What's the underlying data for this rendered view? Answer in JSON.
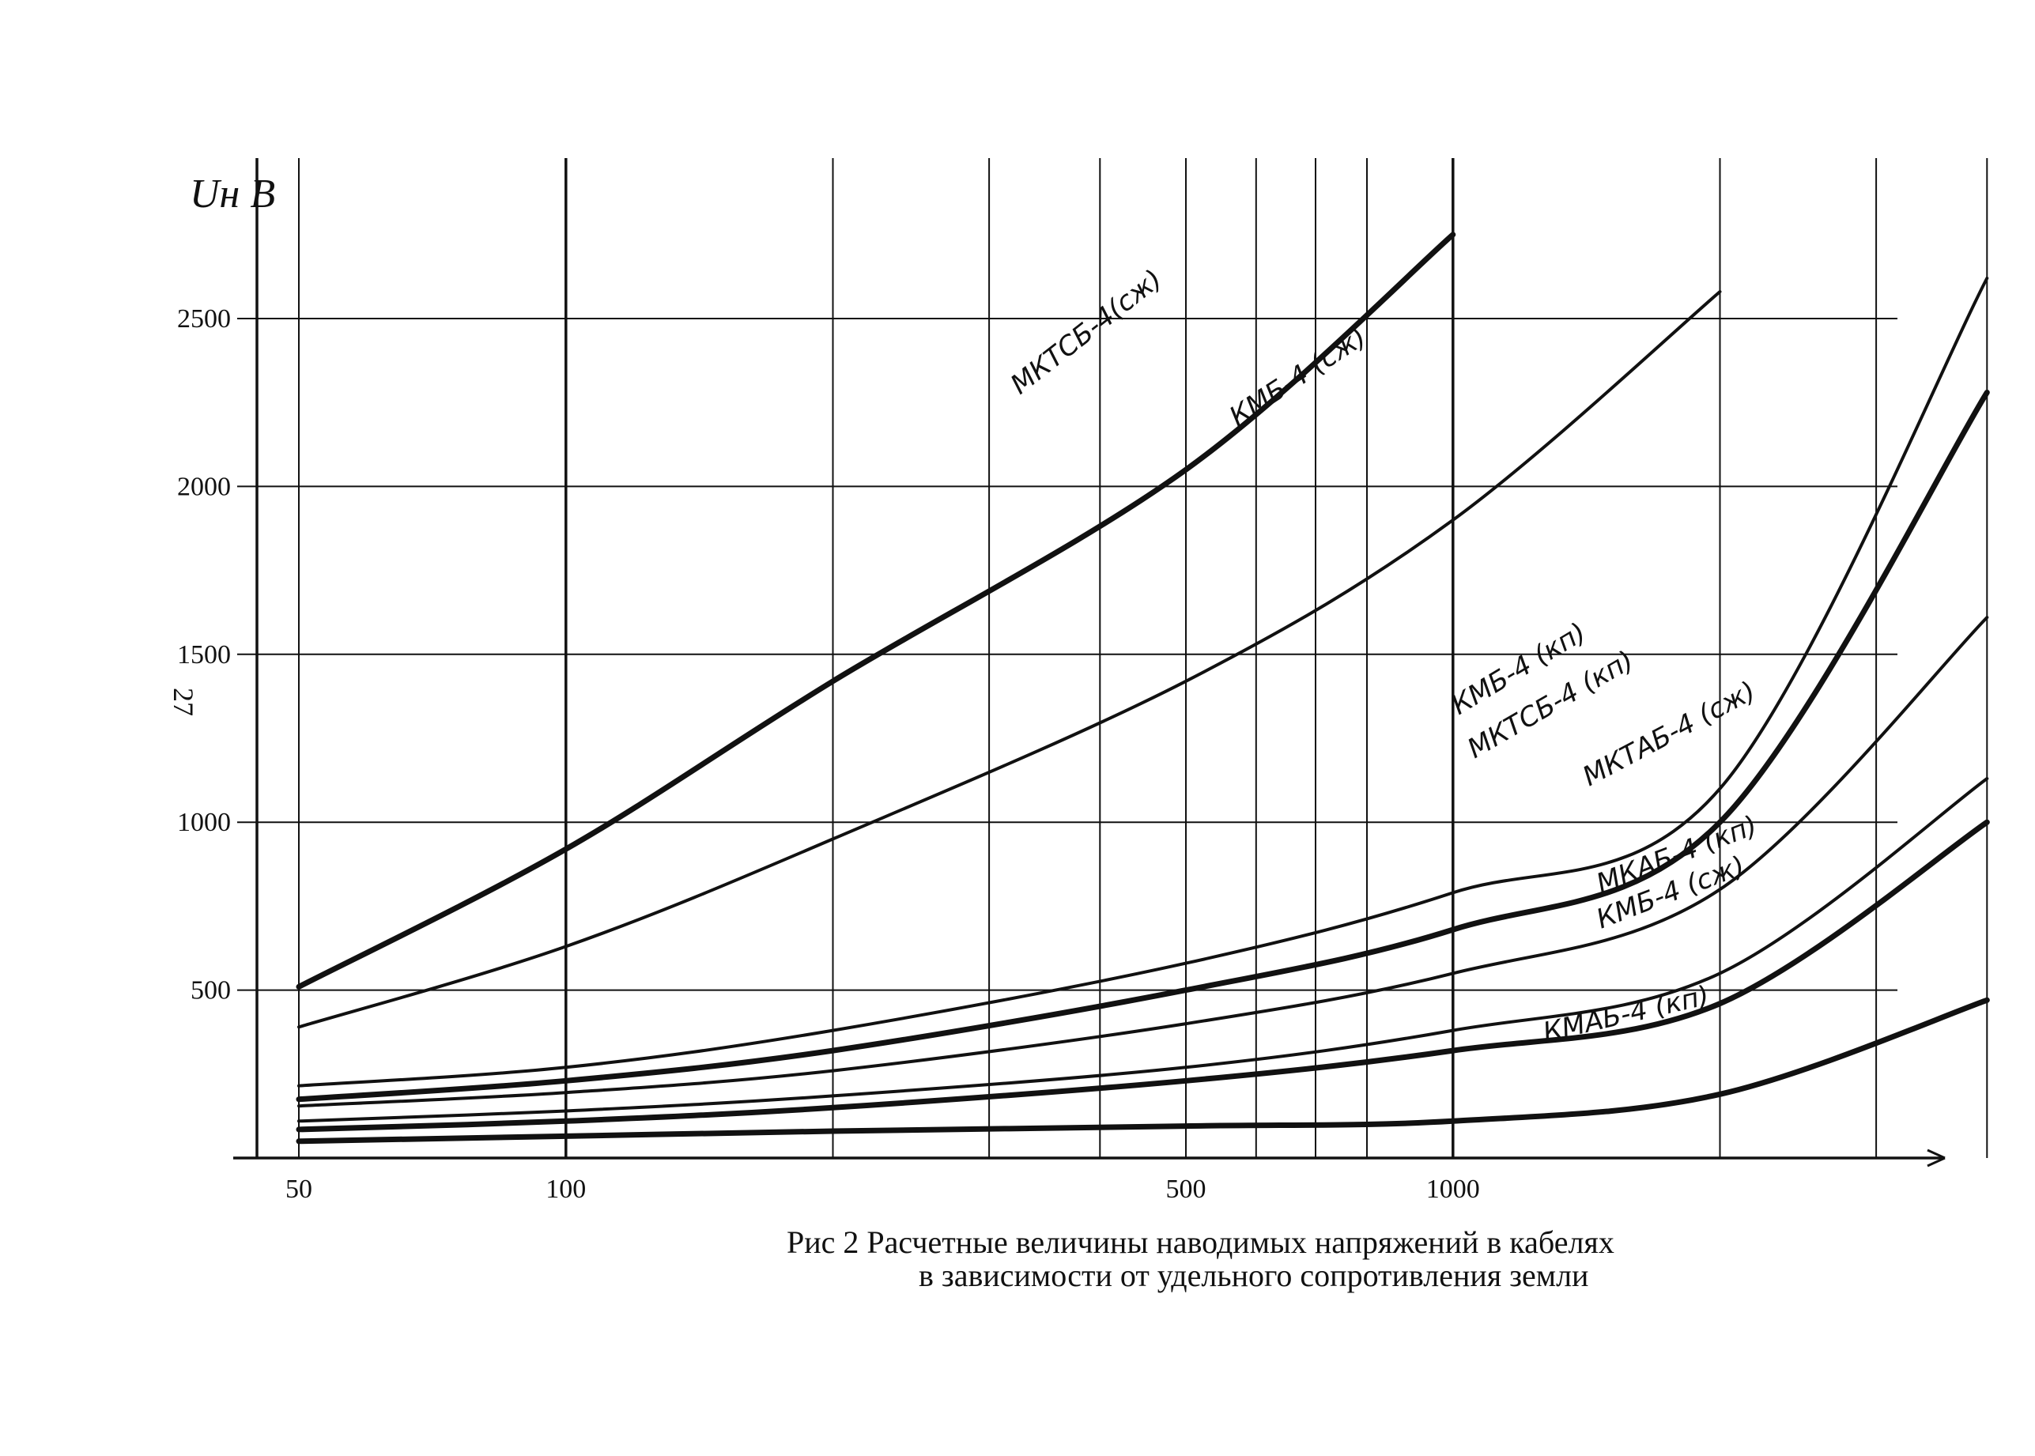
{
  "chart_data": {
    "type": "line",
    "x_scale": "log",
    "xlim": [
      50,
      4000
    ],
    "ylim": [
      0,
      2800
    ],
    "grid": true,
    "ylabel": "Uн  В",
    "xticks": [
      "50",
      "100",
      "500",
      "1000"
    ],
    "yticks": [
      "500",
      "1000",
      "1500",
      "2000",
      "2500"
    ],
    "series": [
      {
        "name": "МКТСБ-4(сж)",
        "weight": "heavy",
        "x": [
          50,
          100,
          200,
          500,
          1000
        ],
        "y": [
          510,
          920,
          1420,
          2050,
          2750
        ]
      },
      {
        "name": "КМБ-4 (сж)",
        "weight": "normal",
        "x": [
          50,
          100,
          200,
          500,
          1000,
          2000
        ],
        "y": [
          390,
          630,
          950,
          1420,
          1900,
          2580
        ]
      },
      {
        "name": "КМБ-4 (кп)",
        "weight": "normal",
        "x": [
          50,
          100,
          200,
          500,
          1000,
          2000,
          4000
        ],
        "y": [
          215,
          270,
          380,
          580,
          790,
          1100,
          2620
        ]
      },
      {
        "name": "МКТСБ-4 (кп)",
        "weight": "heavy",
        "x": [
          50,
          100,
          200,
          500,
          1000,
          2000,
          4000
        ],
        "y": [
          175,
          230,
          320,
          500,
          680,
          1000,
          2280
        ]
      },
      {
        "name": "МКТАБ-4 (сж)",
        "weight": "normal",
        "x": [
          50,
          100,
          200,
          500,
          1000,
          2000,
          4000
        ],
        "y": [
          155,
          195,
          260,
          400,
          550,
          800,
          1610
        ]
      },
      {
        "name": "МКАБ-4 (кп)",
        "weight": "normal",
        "x": [
          50,
          100,
          200,
          500,
          1000,
          2000,
          4000
        ],
        "y": [
          110,
          140,
          185,
          270,
          380,
          550,
          1130
        ]
      },
      {
        "name": "КМБ-4 (сж)",
        "weight": "heavy",
        "x": [
          50,
          100,
          200,
          500,
          1000,
          2000,
          4000
        ],
        "y": [
          85,
          110,
          150,
          230,
          320,
          460,
          1000
        ]
      },
      {
        "name": "КМАБ-4 (кп)",
        "weight": "heavy",
        "x": [
          50,
          100,
          200,
          500,
          1000,
          2000,
          4000
        ],
        "y": [
          50,
          65,
          80,
          95,
          110,
          190,
          470
        ]
      }
    ]
  },
  "page_number": "27",
  "caption": {
    "line1": "Рис 2   Расчетные величины наводимых напряжений в кабелях",
    "line2": "в зависимости от удельного сопротивления земли"
  },
  "colors": {
    "ink": "#111111",
    "paper": "#ffffff"
  }
}
